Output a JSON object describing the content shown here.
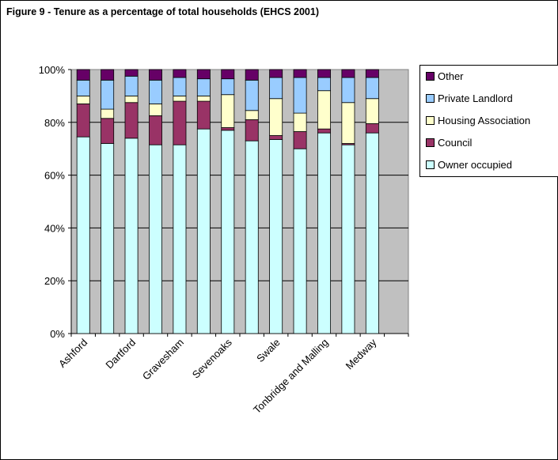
{
  "figure_title": "Figure 9 - Tenure as a percentage of total households (EHCS 2001)",
  "chart_data": {
    "type": "bar",
    "stacked": true,
    "title": "Figure 9 - Tenure as a percentage of total households (EHCS 2001)",
    "xlabel": "",
    "ylabel": "",
    "ylim": [
      0,
      100
    ],
    "y_tick_labels": [
      "0%",
      "20%",
      "40%",
      "60%",
      "80%",
      "100%"
    ],
    "y_ticks": [
      0,
      20,
      40,
      60,
      80,
      100
    ],
    "x_tick_labels": [
      "Ashford",
      "Dartford",
      "Gravesham",
      "Sevenoaks",
      "Swale",
      "Tonbridge and Malling",
      "Medway"
    ],
    "bar_count": 13,
    "grid": "horizontal lines",
    "plot_background": "#C0C0C0",
    "legend_position": "right",
    "series": [
      {
        "name": "Owner occupied",
        "color": "#CCFFFF",
        "values": [
          74.5,
          72,
          74,
          71.5,
          71.5,
          77.5,
          77,
          73,
          73.5,
          70,
          76,
          71.5,
          76
        ]
      },
      {
        "name": "Council",
        "color": "#993366",
        "values": [
          12.5,
          9.5,
          13.5,
          11,
          16.5,
          10.5,
          1,
          8,
          1.5,
          6.5,
          1.5,
          0.5,
          3.5
        ]
      },
      {
        "name": "Housing Association",
        "color": "#FFFFCC",
        "values": [
          3,
          3.5,
          2.5,
          4.5,
          2,
          2,
          12.5,
          3.5,
          14,
          7,
          14.5,
          15.5,
          9.5
        ]
      },
      {
        "name": "Private Landlord",
        "color": "#99CCFF",
        "values": [
          6,
          11,
          7.5,
          9,
          7,
          6.5,
          6,
          11.5,
          8,
          13.5,
          5,
          9.5,
          8
        ]
      },
      {
        "name": "Other",
        "color": "#660066",
        "values": [
          4,
          4,
          2.5,
          4,
          3,
          3.5,
          3.5,
          4,
          3,
          3,
          3,
          3,
          3
        ]
      }
    ]
  }
}
